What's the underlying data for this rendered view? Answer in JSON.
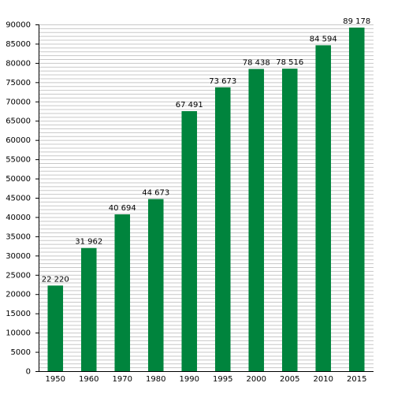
{
  "chart_data": {
    "type": "bar",
    "title": "",
    "xlabel": "",
    "ylabel": "",
    "categories": [
      "1950",
      "1960",
      "1970",
      "1980",
      "1990",
      "1995",
      "2000",
      "2005",
      "2010",
      "2015"
    ],
    "values": [
      22220,
      31962,
      40694,
      44673,
      67491,
      73673,
      78438,
      78516,
      84594,
      89178
    ],
    "data_labels": [
      "22 220",
      "31 962",
      "40 694",
      "44 673",
      "67 491",
      "73 673",
      "78 438",
      "78 516",
      "84 594",
      "89 178"
    ],
    "ylim": [
      0,
      90000
    ],
    "yticks": [
      0,
      5000,
      10000,
      15000,
      20000,
      25000,
      30000,
      35000,
      40000,
      45000,
      50000,
      55000,
      60000,
      65000,
      70000,
      75000,
      80000,
      85000,
      90000
    ],
    "minor_grid_step": 1000,
    "grid": true,
    "bar_color": "#00843d",
    "grid_color": "#c8c8c8"
  }
}
